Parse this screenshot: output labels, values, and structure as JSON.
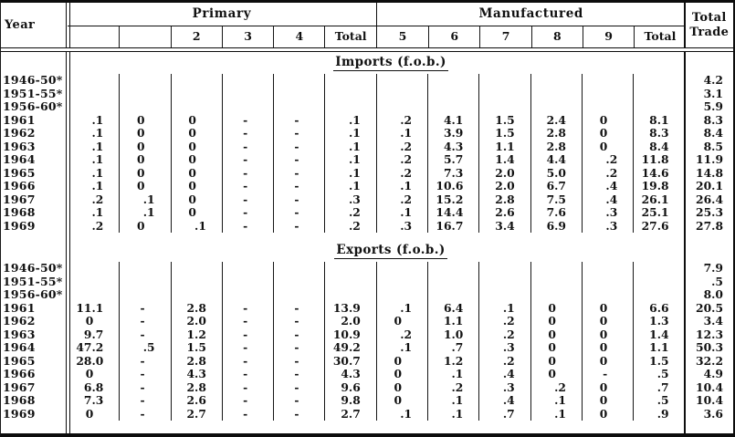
{
  "table": {
    "year_header": "Year",
    "groups": [
      {
        "label": "Primary",
        "subcolumns": [
          "",
          "",
          "2",
          "3",
          "4",
          "Total"
        ]
      },
      {
        "label": "Manufactured",
        "subcolumns": [
          "5",
          "6",
          "7",
          "8",
          "9",
          "Total"
        ]
      }
    ],
    "total_trade_header": [
      "Total",
      "Trade"
    ],
    "sections": [
      {
        "title": "Imports (f.o.b.)",
        "rows": [
          {
            "year": "1946-50*",
            "values": [
              "",
              "",
              "",
              "",
              "",
              "",
              "",
              "",
              "",
              "",
              "",
              ""
            ],
            "total": "4.2"
          },
          {
            "year": "1951-55*",
            "values": [
              "",
              "",
              "",
              "",
              "",
              "",
              "",
              "",
              "",
              "",
              "",
              ""
            ],
            "total": "3.1"
          },
          {
            "year": "1956-60*",
            "values": [
              "",
              "",
              "",
              "",
              "",
              "",
              "",
              "",
              "",
              "",
              "",
              ""
            ],
            "total": "5.9"
          },
          {
            "year": "1961",
            "values": [
              ".1",
              "0",
              "0",
              "-",
              "-",
              ".1",
              ".2",
              "4.1",
              "1.5",
              "2.4",
              "0",
              "8.1"
            ],
            "total": "8.3"
          },
          {
            "year": "1962",
            "values": [
              ".1",
              "0",
              "0",
              "-",
              "-",
              ".1",
              ".1",
              "3.9",
              "1.5",
              "2.8",
              "0",
              "8.3"
            ],
            "total": "8.4"
          },
          {
            "year": "1963",
            "values": [
              ".1",
              "0",
              "0",
              "-",
              "-",
              ".1",
              ".2",
              "4.3",
              "1.1",
              "2.8",
              "0",
              "8.4"
            ],
            "total": "8.5"
          },
          {
            "year": "1964",
            "values": [
              ".1",
              "0",
              "0",
              "-",
              "-",
              ".1",
              ".2",
              "5.7",
              "1.4",
              "4.4",
              ".2",
              "11.8"
            ],
            "total": "11.9"
          },
          {
            "year": "1965",
            "values": [
              ".1",
              "0",
              "0",
              "-",
              "-",
              ".1",
              ".2",
              "7.3",
              "2.0",
              "5.0",
              ".2",
              "14.6"
            ],
            "total": "14.8"
          },
          {
            "year": "1966",
            "values": [
              ".1",
              "0",
              "0",
              "-",
              "-",
              ".1",
              ".1",
              "10.6",
              "2.0",
              "6.7",
              ".4",
              "19.8"
            ],
            "total": "20.1"
          },
          {
            "year": "1967",
            "values": [
              ".2",
              ".1",
              "0",
              "-",
              "-",
              ".3",
              ".2",
              "15.2",
              "2.8",
              "7.5",
              ".4",
              "26.1"
            ],
            "total": "26.4"
          },
          {
            "year": "1968",
            "values": [
              ".1",
              ".1",
              "0",
              "-",
              "-",
              ".2",
              ".1",
              "14.4",
              "2.6",
              "7.6",
              ".3",
              "25.1"
            ],
            "total": "25.3"
          },
          {
            "year": "1969",
            "values": [
              ".2",
              "0",
              ".1",
              "-",
              "-",
              ".2",
              ".3",
              "16.7",
              "3.4",
              "6.9",
              ".3",
              "27.6"
            ],
            "total": "27.8"
          }
        ]
      },
      {
        "title": "Exports (f.o.b.)",
        "rows": [
          {
            "year": "1946-50*",
            "values": [
              "",
              "",
              "",
              "",
              "",
              "",
              "",
              "",
              "",
              "",
              "",
              ""
            ],
            "total": "7.9"
          },
          {
            "year": "1951-55*",
            "values": [
              "",
              "",
              "",
              "",
              "",
              "",
              "",
              "",
              "",
              "",
              "",
              ""
            ],
            "total": ".5"
          },
          {
            "year": "1956-60*",
            "values": [
              "",
              "",
              "",
              "",
              "",
              "",
              "",
              "",
              "",
              "",
              "",
              ""
            ],
            "total": "8.0"
          },
          {
            "year": "1961",
            "values": [
              "11.1",
              "-",
              "2.8",
              "-",
              "-",
              "13.9",
              ".1",
              "6.4",
              ".1",
              "0",
              "0",
              "6.6"
            ],
            "total": "20.5"
          },
          {
            "year": "1962",
            "values": [
              "0",
              "-",
              "2.0",
              "-",
              "-",
              "2.0",
              "0",
              "1.1",
              ".2",
              "0",
              "0",
              "1.3"
            ],
            "total": "3.4"
          },
          {
            "year": "1963",
            "values": [
              "9.7",
              "-",
              "1.2",
              "-",
              "-",
              "10.9",
              ".2",
              "1.0",
              ".2",
              "0",
              "0",
              "1.4"
            ],
            "total": "12.3"
          },
          {
            "year": "1964",
            "values": [
              "47.2",
              ".5",
              "1.5",
              "-",
              "-",
              "49.2",
              ".1",
              ".7",
              ".3",
              "0",
              "0",
              "1.1"
            ],
            "total": "50.3"
          },
          {
            "year": "1965",
            "values": [
              "28.0",
              "-",
              "2.8",
              "-",
              "-",
              "30.7",
              "0",
              "1.2",
              ".2",
              "0",
              "0",
              "1.5"
            ],
            "total": "32.2"
          },
          {
            "year": "1966",
            "values": [
              "0",
              "-",
              "4.3",
              "-",
              "-",
              "4.3",
              "0",
              ".1",
              ".4",
              "0",
              "-",
              ".5"
            ],
            "total": "4.9"
          },
          {
            "year": "1967",
            "values": [
              "6.8",
              "-",
              "2.8",
              "-",
              "-",
              "9.6",
              "0",
              ".2",
              ".3",
              ".2",
              "0",
              ".7"
            ],
            "total": "10.4"
          },
          {
            "year": "1968",
            "values": [
              "7.3",
              "-",
              "2.6",
              "-",
              "-",
              "9.8",
              "0",
              ".1",
              ".4",
              ".1",
              "0",
              ".5"
            ],
            "total": "10.4"
          },
          {
            "year": "1969",
            "values": [
              "0",
              "-",
              "2.7",
              "-",
              "-",
              "2.7",
              ".1",
              ".1",
              ".7",
              ".1",
              "0",
              ".9"
            ],
            "total": "3.6"
          }
        ]
      }
    ]
  }
}
